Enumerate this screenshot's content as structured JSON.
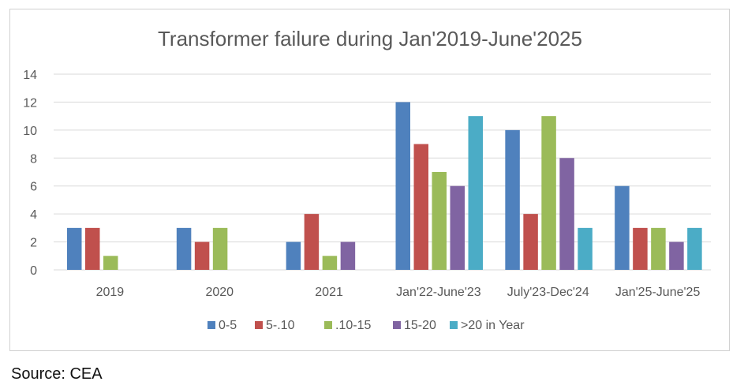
{
  "source_note": "Source: CEA",
  "chart_data": {
    "type": "bar",
    "title": "Transformer failure during Jan'2019-June'2025",
    "xlabel": "",
    "ylabel": "",
    "categories": [
      "2019",
      "2020",
      "2021",
      "Jan'22-June'23",
      "July'23-Dec'24",
      "Jan'25-June'25"
    ],
    "series": [
      {
        "name": "0-5",
        "color": "#4f81bd",
        "values": [
          3,
          3,
          2,
          12,
          10,
          6
        ]
      },
      {
        "name": "5-.10",
        "color": "#c0504d",
        "values": [
          3,
          2,
          4,
          9,
          4,
          3
        ]
      },
      {
        "name": ".10-15",
        "color": "#9bbb59",
        "values": [
          1,
          3,
          1,
          7,
          11,
          3
        ]
      },
      {
        "name": "15-20",
        "color": "#8064a2",
        "values": [
          0,
          0,
          2,
          6,
          8,
          2
        ]
      },
      {
        "name": ">20  in Year",
        "color": "#4bacc6",
        "values": [
          0,
          0,
          0,
          11,
          3,
          3
        ]
      }
    ],
    "ylim": [
      0,
      14
    ],
    "yticks": [
      0,
      2,
      4,
      6,
      8,
      10,
      12,
      14
    ],
    "grid": true,
    "legend_position": "bottom"
  }
}
